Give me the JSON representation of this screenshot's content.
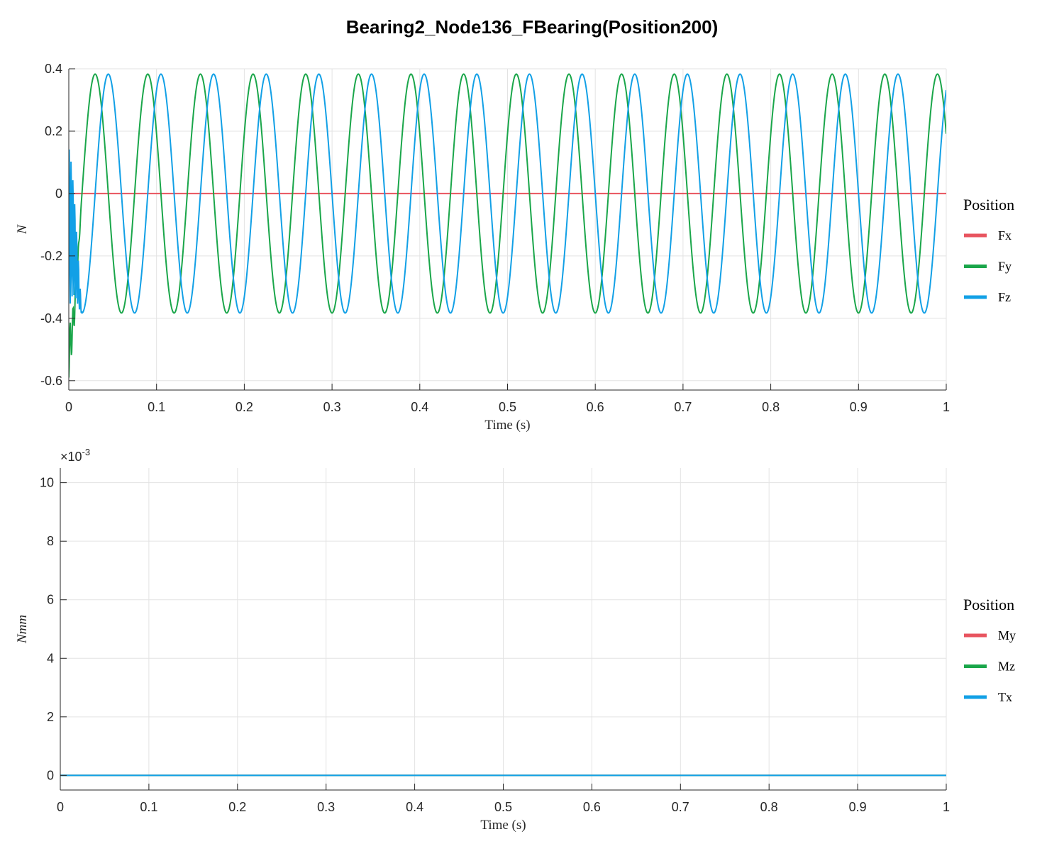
{
  "figure": {
    "title": "Bearing2_Node136_FBearing(Position200)"
  },
  "chart_data": [
    {
      "type": "line",
      "xlabel": "Time (s)",
      "ylabel": "N",
      "xlim": [
        0,
        1
      ],
      "ylim": [
        -0.63,
        0.4
      ],
      "xticks": [
        0,
        0.1,
        0.2,
        0.3,
        0.4,
        0.5,
        0.6,
        0.7,
        0.8,
        0.9,
        1
      ],
      "xtick_labels": [
        "0",
        "0.1",
        "0.2",
        "0.3",
        "0.4",
        "0.5",
        "0.6",
        "0.7",
        "0.8",
        "0.9",
        "1"
      ],
      "yticks": [
        -0.6,
        -0.4,
        -0.2,
        0,
        0.2,
        0.4
      ],
      "ytick_labels": [
        "-0.6",
        "-0.4",
        "-0.2",
        "0",
        "0.2",
        "0.4"
      ],
      "grid": true,
      "legend_title": "Position",
      "legend_position": "right",
      "series": [
        {
          "name": "Fx",
          "color": "#e8545f",
          "form": "constant",
          "value": 0
        },
        {
          "name": "Fy",
          "color": "#1aa64a",
          "form": "sine",
          "amplitude": 0.383,
          "period_s": 0.06,
          "peak_time_s": 0.03,
          "transient_min": -0.59
        },
        {
          "name": "Fz",
          "color": "#12a0e6",
          "form": "sine",
          "amplitude": 0.383,
          "period_s": 0.06,
          "peak_time_s": 0.045,
          "transient_max": 0.16,
          "transient_min": -0.4
        }
      ]
    },
    {
      "type": "line",
      "xlabel": "Time (s)",
      "ylabel": "Nmm",
      "xlim": [
        0,
        1
      ],
      "ylim": [
        -0.0005,
        0.0105
      ],
      "y_exponent_label": "×10",
      "y_exponent": "-3",
      "xticks": [
        0,
        0.1,
        0.2,
        0.3,
        0.4,
        0.5,
        0.6,
        0.7,
        0.8,
        0.9,
        1
      ],
      "xtick_labels": [
        "0",
        "0.1",
        "0.2",
        "0.3",
        "0.4",
        "0.5",
        "0.6",
        "0.7",
        "0.8",
        "0.9",
        "1"
      ],
      "yticks": [
        0,
        0.002,
        0.004,
        0.006,
        0.008,
        0.01
      ],
      "ytick_labels": [
        "0",
        "2",
        "4",
        "6",
        "8",
        "10"
      ],
      "grid": true,
      "legend_title": "Position",
      "legend_position": "right",
      "series": [
        {
          "name": "My",
          "color": "#e8545f",
          "form": "constant",
          "value": 0
        },
        {
          "name": "Mz",
          "color": "#1aa64a",
          "form": "constant",
          "value": 0
        },
        {
          "name": "Tx",
          "color": "#12a0e6",
          "form": "constant",
          "value": 0
        }
      ]
    }
  ]
}
